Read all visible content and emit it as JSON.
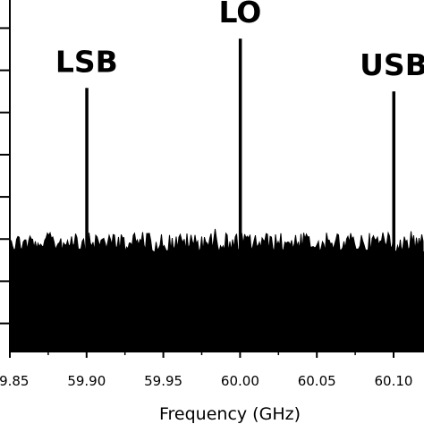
{
  "chart_data": {
    "type": "line",
    "title": "",
    "xlabel": "Frequency (GHz)",
    "ylabel": "",
    "xlim": [
      59.85,
      60.12
    ],
    "ylim": [
      0,
      1
    ],
    "x_ticks": [
      {
        "value": 59.85,
        "label": "59.85"
      },
      {
        "value": 59.9,
        "label": "59.90"
      },
      {
        "value": 59.95,
        "label": "59.95"
      },
      {
        "value": 60.0,
        "label": "60.00"
      },
      {
        "value": 60.05,
        "label": "60.05"
      },
      {
        "value": 60.1,
        "label": "60.10"
      }
    ],
    "y_tick_values": [
      0.08,
      0.2,
      0.32,
      0.44,
      0.56,
      0.68,
      0.8,
      0.92
    ],
    "noise_floor": 0.3,
    "peaks": [
      {
        "label": "LSB",
        "x": 59.9,
        "y": 0.75
      },
      {
        "label": "LO",
        "x": 60.0,
        "y": 0.89
      },
      {
        "label": "USB",
        "x": 60.1,
        "y": 0.74
      }
    ],
    "grid": false,
    "legend": "none",
    "color": "#000000"
  }
}
